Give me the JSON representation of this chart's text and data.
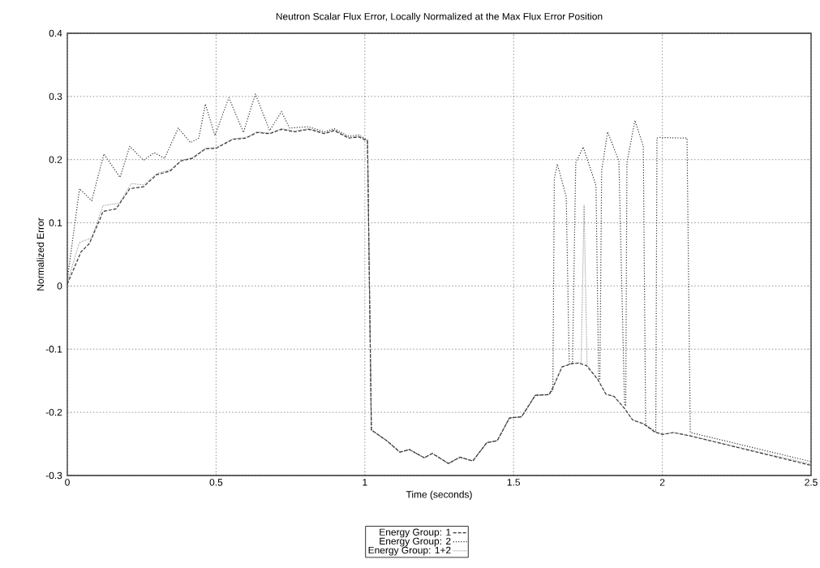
{
  "chart_data": {
    "type": "line",
    "title": "Neutron Scalar Flux Error, Locally Normalized at the Max Flux Error Position",
    "xlabel": "Time (seconds)",
    "ylabel": "Normalized Error",
    "xlim": [
      0,
      2.5
    ],
    "ylim": [
      -0.3,
      0.4
    ],
    "xticks": [
      0,
      0.5,
      1,
      1.5,
      2,
      2.5
    ],
    "yticks": [
      -0.3,
      -0.2,
      -0.1,
      0,
      0.1,
      0.2,
      0.3,
      0.4
    ],
    "grid": true,
    "legend": "bottom",
    "marker": "none",
    "series": [
      {
        "name": "Energy Group: 1",
        "color": "#333333",
        "line_style": "dashed",
        "x": [
          0,
          0.019,
          0.046,
          0.074,
          0.109,
          0.12,
          0.164,
          0.21,
          0.256,
          0.3,
          0.346,
          0.382,
          0.42,
          0.464,
          0.5,
          0.556,
          0.6,
          0.638,
          0.68,
          0.72,
          0.764,
          0.81,
          0.829,
          0.864,
          0.897,
          0.946,
          0.98,
          1.009,
          1.022,
          1.074,
          1.118,
          1.15,
          1.2,
          1.227,
          1.281,
          1.32,
          1.363,
          1.41,
          1.445,
          1.486,
          1.527,
          1.573,
          1.619,
          1.633,
          1.663,
          1.696,
          1.718,
          1.745,
          1.783,
          1.81,
          1.838,
          1.873,
          1.9,
          1.936,
          1.974,
          2.001,
          2.037,
          2.091,
          2.5
        ],
        "values": [
          0.003,
          0.024,
          0.054,
          0.067,
          0.105,
          0.118,
          0.122,
          0.154,
          0.157,
          0.176,
          0.182,
          0.198,
          0.202,
          0.217,
          0.218,
          0.232,
          0.234,
          0.243,
          0.241,
          0.248,
          0.244,
          0.248,
          0.246,
          0.241,
          0.246,
          0.234,
          0.236,
          0.229,
          -0.228,
          -0.245,
          -0.263,
          -0.259,
          -0.272,
          -0.265,
          -0.281,
          -0.271,
          -0.277,
          -0.248,
          -0.245,
          -0.209,
          -0.207,
          -0.173,
          -0.172,
          -0.16,
          -0.128,
          -0.123,
          -0.122,
          -0.126,
          -0.148,
          -0.171,
          -0.175,
          -0.194,
          -0.212,
          -0.218,
          -0.231,
          -0.235,
          -0.232,
          -0.237,
          -0.284
        ]
      },
      {
        "name": "Energy Group: 2",
        "color": "#333333",
        "line_style": "dotted",
        "x": [
          0,
          0.041,
          0.082,
          0.123,
          0.177,
          0.21,
          0.256,
          0.292,
          0.327,
          0.373,
          0.414,
          0.442,
          0.464,
          0.496,
          0.543,
          0.592,
          0.632,
          0.68,
          0.72,
          0.747,
          0.81,
          0.864,
          0.897,
          0.946,
          0.98,
          1.009,
          1.022,
          1.074,
          1.118,
          1.15,
          1.2,
          1.227,
          1.281,
          1.32,
          1.363,
          1.41,
          1.445,
          1.486,
          1.527,
          1.573,
          1.619,
          1.632,
          1.637,
          1.647,
          1.677,
          1.687,
          1.698,
          1.709,
          1.734,
          1.777,
          1.786,
          1.79,
          1.796,
          1.816,
          1.854,
          1.873,
          1.877,
          1.881,
          1.908,
          1.936,
          1.944,
          1.978,
          1.982,
          1.99,
          2.083,
          2.094,
          2.5
        ],
        "values": [
          0.01,
          0.154,
          0.135,
          0.209,
          0.172,
          0.221,
          0.199,
          0.211,
          0.202,
          0.25,
          0.227,
          0.234,
          0.288,
          0.238,
          0.298,
          0.243,
          0.304,
          0.246,
          0.276,
          0.25,
          0.252,
          0.244,
          0.249,
          0.237,
          0.239,
          0.231,
          -0.228,
          -0.245,
          -0.263,
          -0.259,
          -0.272,
          -0.265,
          -0.281,
          -0.271,
          -0.277,
          -0.248,
          -0.245,
          -0.209,
          -0.207,
          -0.173,
          -0.172,
          -0.165,
          0.17,
          0.193,
          0.141,
          -0.123,
          -0.123,
          0.195,
          0.22,
          0.159,
          -0.148,
          -0.148,
          0.182,
          0.244,
          0.198,
          -0.187,
          -0.19,
          0.195,
          0.262,
          0.221,
          -0.22,
          -0.231,
          0.234,
          0.235,
          0.234,
          -0.232,
          -0.278
        ]
      },
      {
        "name": "Energy Group: 1+2",
        "color": "#555555",
        "line_style": "dotted",
        "x": [
          0,
          0.019,
          0.041,
          0.082,
          0.12,
          0.174,
          0.215,
          0.256,
          0.3,
          0.346,
          0.382,
          0.42,
          0.464,
          0.5,
          0.556,
          0.6,
          0.638,
          0.68,
          0.72,
          0.764,
          0.81,
          0.829,
          0.864,
          0.897,
          0.946,
          0.98,
          1.009,
          1.022,
          1.074,
          1.118,
          1.15,
          1.2,
          1.227,
          1.281,
          1.32,
          1.363,
          1.41,
          1.445,
          1.486,
          1.527,
          1.573,
          1.619,
          1.633,
          1.663,
          1.696,
          1.718,
          1.727,
          1.737,
          1.747,
          1.783,
          1.81,
          1.838,
          1.873,
          1.9,
          1.936,
          1.974,
          2.001,
          2.037,
          2.091,
          2.5
        ],
        "values": [
          0.005,
          0.035,
          0.069,
          0.076,
          0.127,
          0.131,
          0.162,
          0.16,
          0.178,
          0.184,
          0.199,
          0.203,
          0.218,
          0.219,
          0.233,
          0.235,
          0.244,
          0.242,
          0.249,
          0.245,
          0.249,
          0.247,
          0.242,
          0.247,
          0.235,
          0.237,
          0.23,
          -0.228,
          -0.245,
          -0.263,
          -0.259,
          -0.272,
          -0.265,
          -0.281,
          -0.271,
          -0.277,
          -0.248,
          -0.245,
          -0.209,
          -0.207,
          -0.173,
          -0.172,
          -0.16,
          -0.128,
          -0.123,
          -0.122,
          -0.122,
          0.128,
          -0.125,
          -0.148,
          -0.171,
          -0.175,
          -0.194,
          -0.212,
          -0.218,
          -0.231,
          -0.235,
          -0.232,
          -0.237,
          -0.282
        ]
      }
    ]
  }
}
